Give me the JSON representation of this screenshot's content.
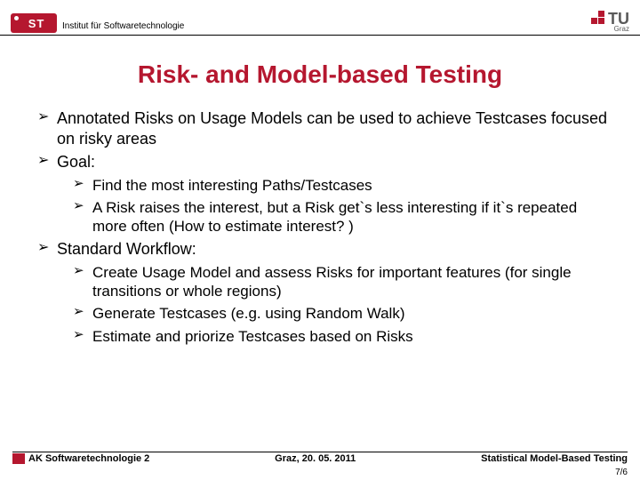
{
  "header": {
    "logo_text": "ST",
    "institute": "Institut für Softwaretechnologie",
    "tu_text": "TU",
    "tu_sub": "Graz"
  },
  "title": "Risk- and Model-based Testing",
  "bullets": {
    "b1": "Annotated Risks on Usage Models can be used to achieve Testcases focused on risky areas",
    "b2": "Goal:",
    "b2_1": "Find the most interesting Paths/Testcases",
    "b2_2": "A Risk raises the interest, but a Risk get`s less interesting if it`s repeated more often (How to estimate interest? )",
    "b3": "Standard Workflow:",
    "b3_1": "Create Usage Model and assess Risks for important features (for single transitions or whole regions)",
    "b3_2": "Generate Testcases (e.g. using Random Walk)",
    "b3_3": "Estimate and priorize Testcases based on Risks"
  },
  "footer": {
    "left": "AK Softwaretechnologie 2",
    "center": "Graz, 20. 05. 2011",
    "right": "Statistical Model-Based Testing",
    "page": "7/6"
  },
  "colors": {
    "accent": "#b5172f",
    "text": "#000000",
    "bg": "#ffffff"
  }
}
